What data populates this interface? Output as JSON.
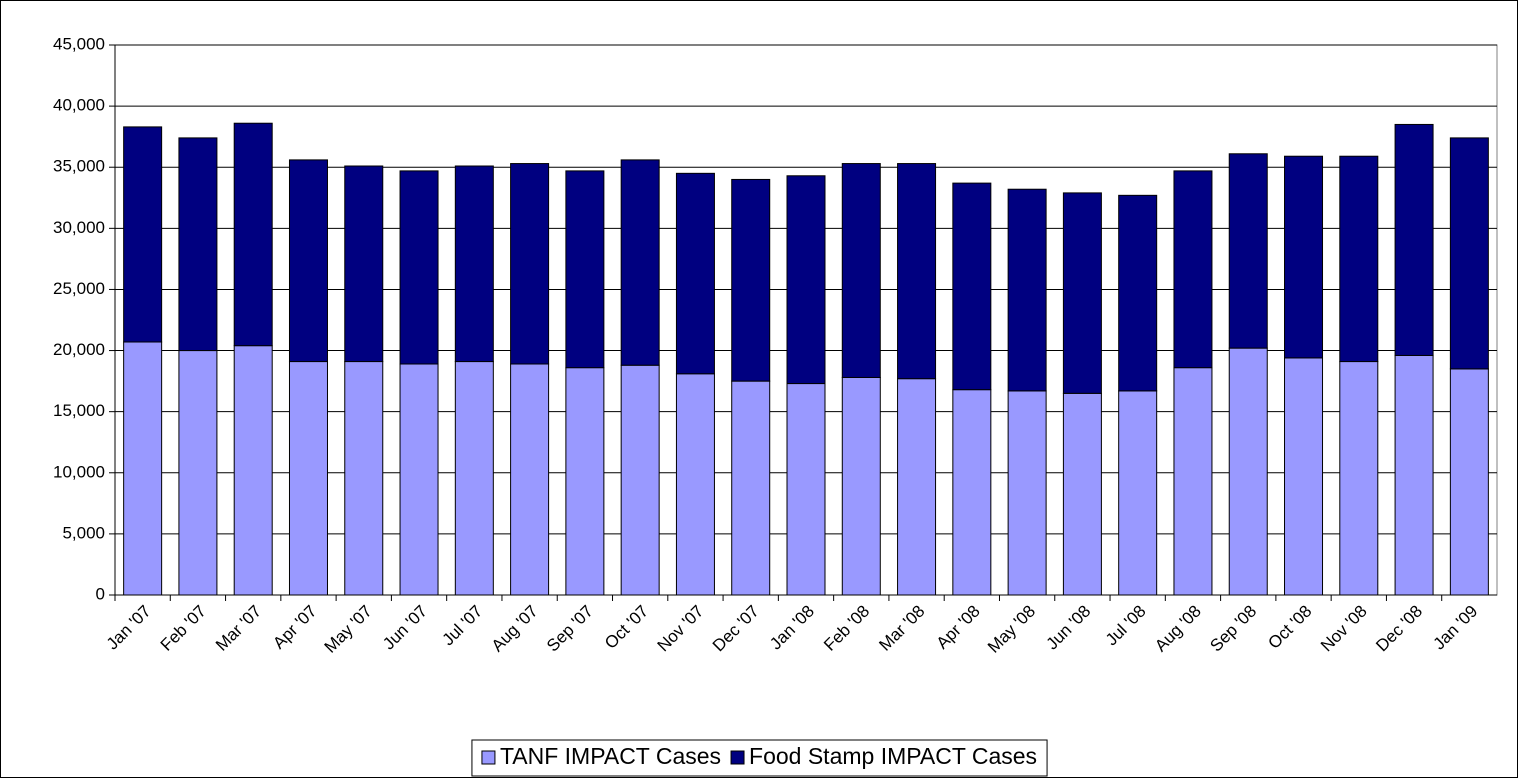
{
  "chart_data": {
    "type": "stacked_bar",
    "categories": [
      "Jan '07",
      "Feb '07",
      "Mar '07",
      "Apr '07",
      "May '07",
      "Jun '07",
      "Jul '07",
      "Aug '07",
      "Sep '07",
      "Oct '07",
      "Nov '07",
      "Dec '07",
      "Jan '08",
      "Feb '08",
      "Mar '08",
      "Apr '08",
      "May '08",
      "Jun '08",
      "Jul '08",
      "Aug '08",
      "Sep '08",
      "Oct '08",
      "Nov '08",
      "Dec '08",
      "Jan '09"
    ],
    "series": [
      {
        "name": "TANF IMPACT Cases",
        "color": "#9999ff",
        "values": [
          20700,
          20000,
          20400,
          19100,
          19100,
          18900,
          19100,
          18900,
          18600,
          18800,
          18100,
          17500,
          17300,
          17800,
          17700,
          16800,
          16700,
          16500,
          16700,
          18600,
          20200,
          19400,
          19100,
          19600,
          18500
        ]
      },
      {
        "name": "Food Stamp IMPACT Cases",
        "color": "#000080",
        "values": [
          17600,
          17400,
          18200,
          16500,
          16000,
          15800,
          16000,
          16400,
          16100,
          16800,
          16400,
          16500,
          17000,
          17500,
          17600,
          16900,
          16500,
          16400,
          16000,
          16100,
          15900,
          16500,
          16800,
          18900,
          18900
        ]
      }
    ],
    "ylim": [
      0,
      45000
    ],
    "yticks": [
      0,
      {
        "value": 5000,
        "label": "5,000"
      },
      {
        "value": 10000,
        "label": "10,000"
      },
      {
        "value": 15000,
        "label": "15,000"
      },
      {
        "value": 20000,
        "label": "20,000"
      },
      {
        "value": 25000,
        "label": "25,000"
      },
      {
        "value": 30000,
        "label": "30,000"
      },
      {
        "value": 35000,
        "label": "35,000"
      },
      {
        "value": 40000,
        "label": "40,000"
      },
      {
        "value": 45000,
        "label": "45,000"
      }
    ],
    "grid": true,
    "legend": "bottom"
  }
}
